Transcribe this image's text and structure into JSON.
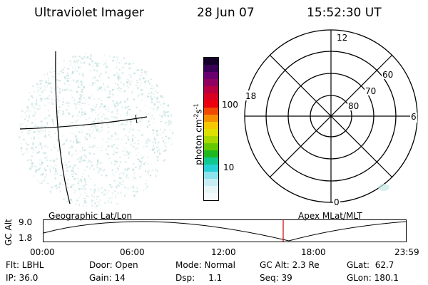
{
  "header": {
    "title": "Ultraviolet Imager",
    "date": "28 Jun 07",
    "time": "15:52:30 UT"
  },
  "colorbar": {
    "unit_label": "photon cm",
    "unit_exp1": "-2",
    "unit_s": "s",
    "unit_exp2": "-1",
    "ticks": [
      "100",
      "10"
    ],
    "colors_top_to_bottom": [
      "#140028",
      "#3a0055",
      "#6a0070",
      "#900060",
      "#b80040",
      "#d90020",
      "#ec0010",
      "#f04a00",
      "#f48f00",
      "#f7c800",
      "#dde000",
      "#a8d800",
      "#66c800",
      "#20b820",
      "#10c890",
      "#28d0d8",
      "#8ee4ec",
      "#c8eef4",
      "#e8f6f8",
      "#f5fbfc"
    ]
  },
  "polar_grid": {
    "mlt_labels": {
      "top": "12",
      "left": "18",
      "right": "6",
      "bottom": "0"
    },
    "lat_labels": [
      "60",
      "70",
      "80"
    ]
  },
  "timeline": {
    "left_title": "Geographic Lat/Lon",
    "right_title": "Apex MLat/MLT",
    "y_axis_label": "GC Alt",
    "y_ticks": [
      "9.0",
      "1.8"
    ],
    "x_ticks": [
      "00:00",
      "06:00",
      "12:00",
      "18:00",
      "23:59"
    ],
    "current_time": "15:52:30"
  },
  "info": {
    "flt": "Flt: LBHL",
    "ip": "IP: 36.0",
    "door": "Door: Open",
    "gain": "Gain: 14",
    "mode": "Mode: Normal",
    "dsp": "Dsp:     1.1",
    "gc_alt": "GC Alt: 2.3 Re",
    "seq": "Seq: 39",
    "glat": "GLat:  62.7",
    "glon": "GLon: 180.1"
  },
  "colors": {
    "cursor": "#cc0000",
    "speckle": "#b8dcd8"
  }
}
